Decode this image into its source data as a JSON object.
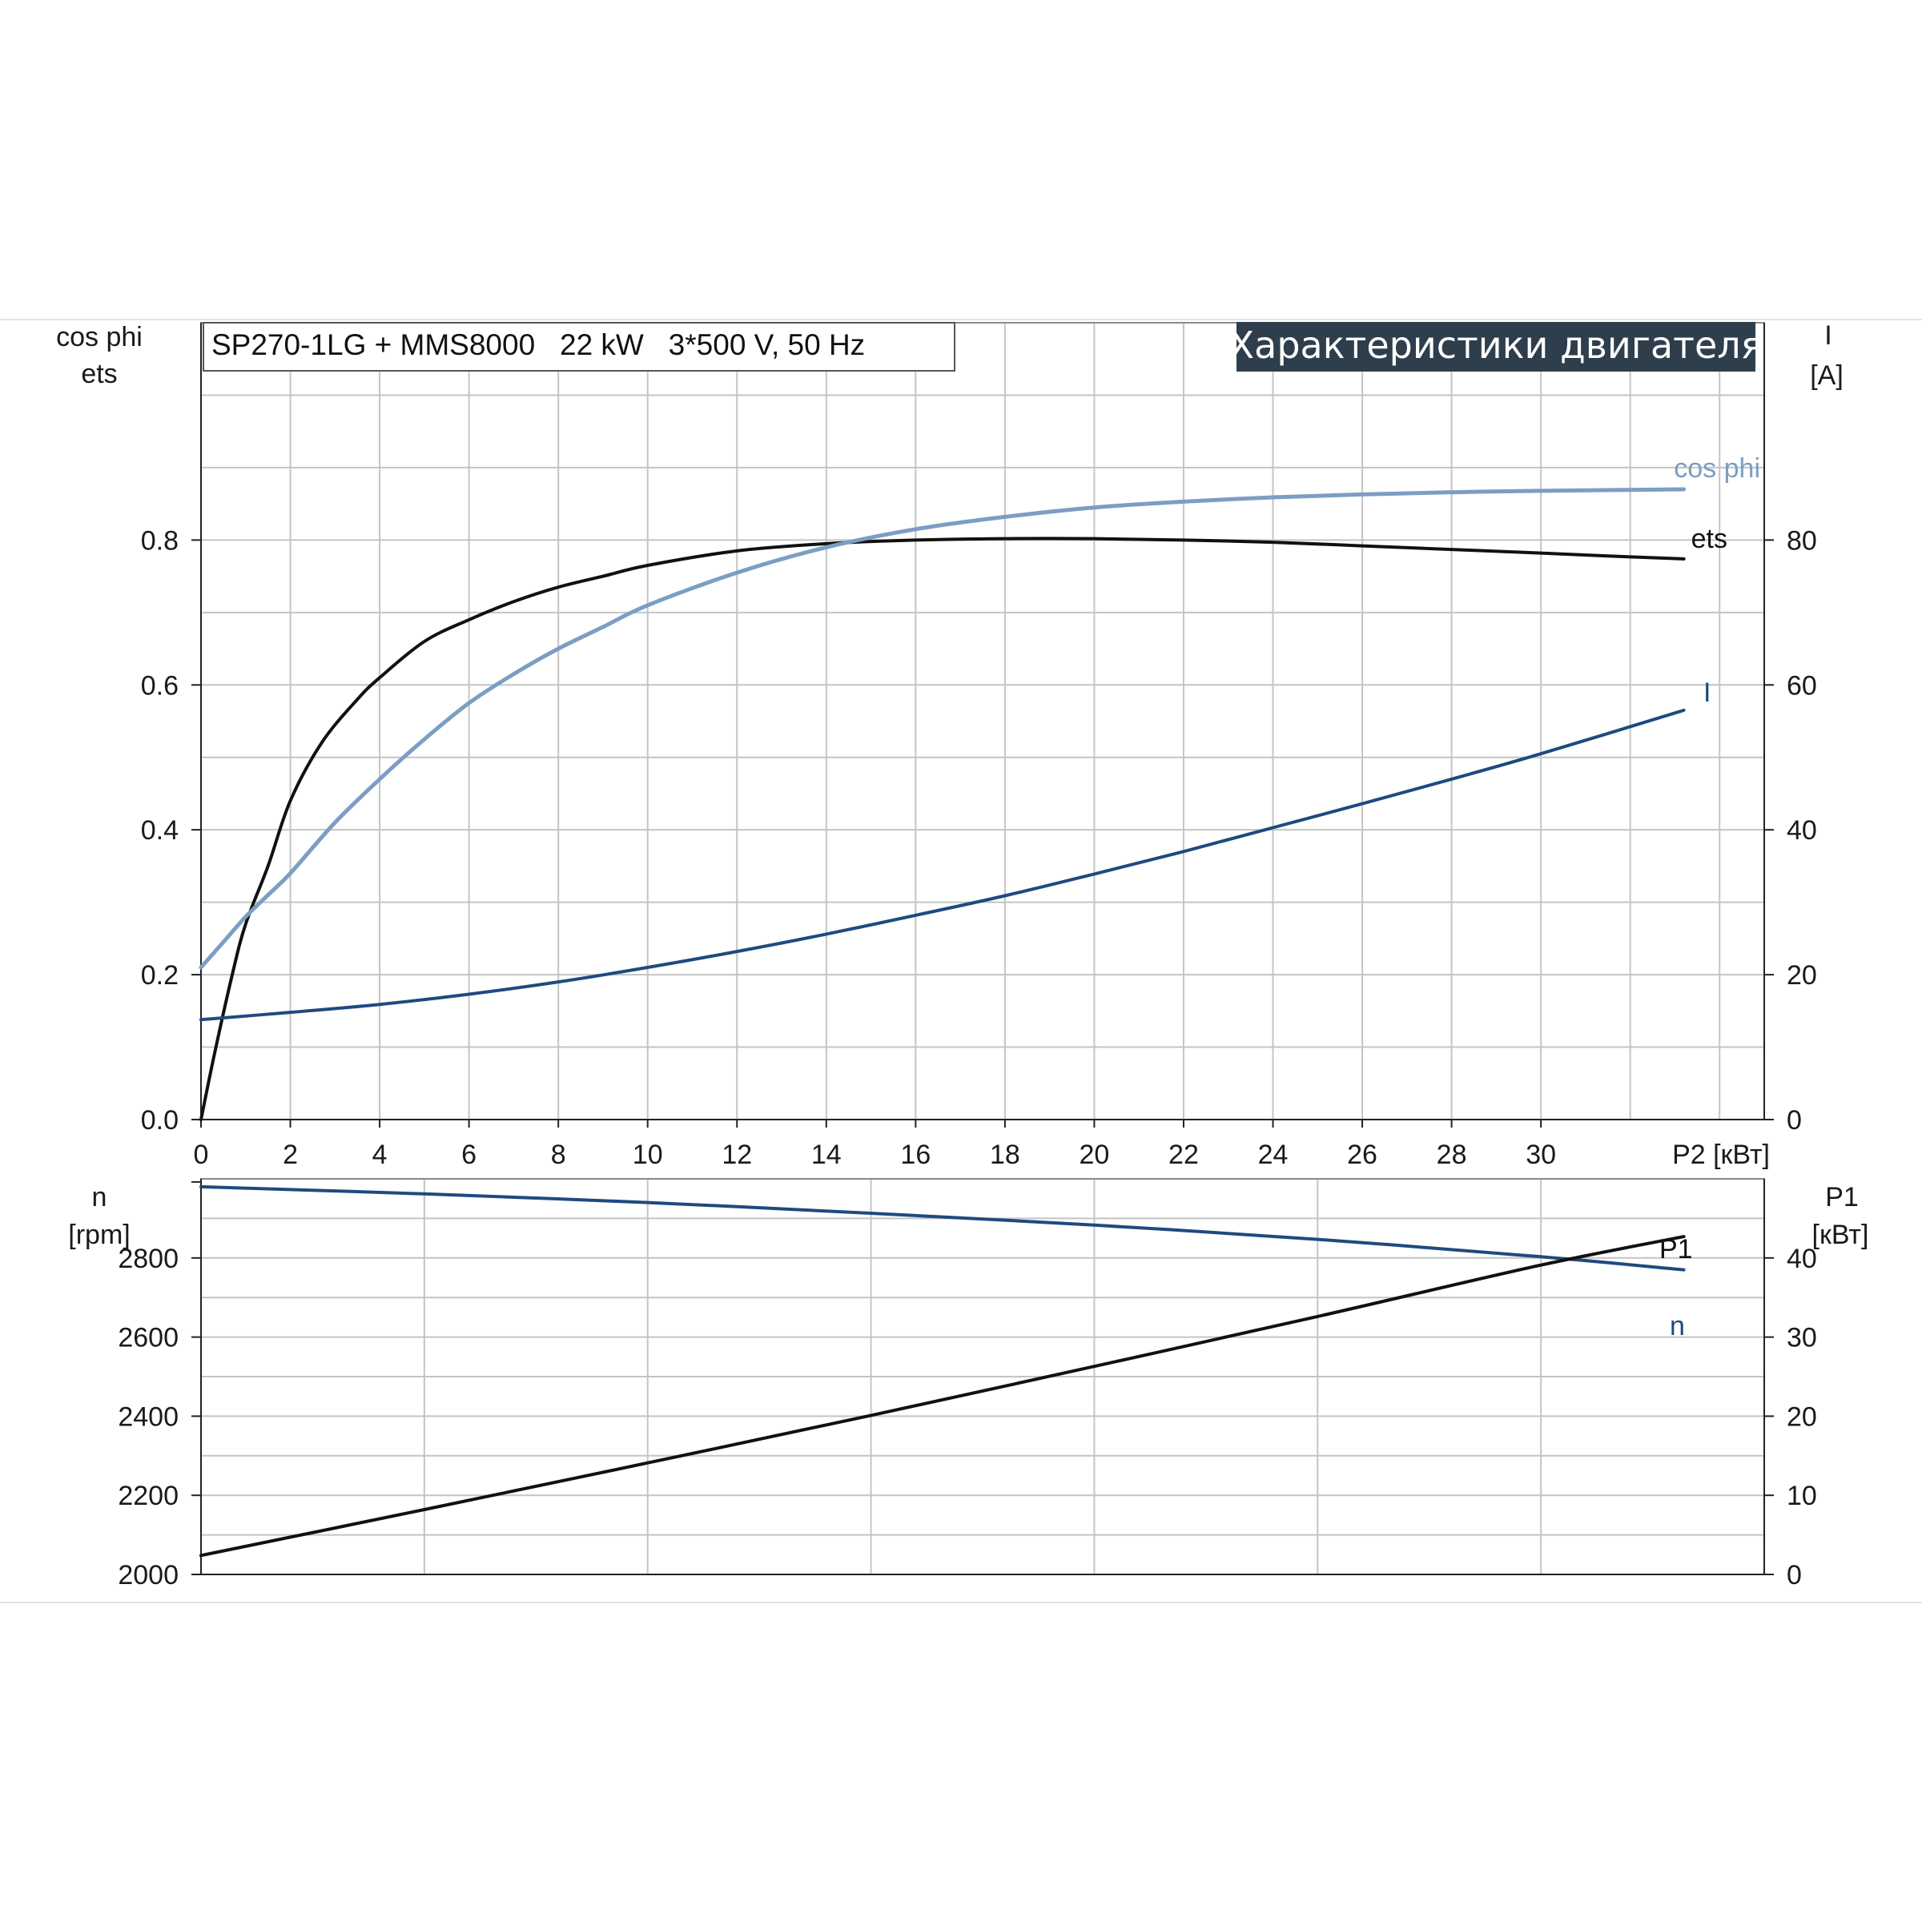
{
  "info_box": "SP270-1LG + MMS8000   22 kW   3*500 V, 50 Hz",
  "title": "Характеристики двигателя",
  "colors": {
    "grid": "#c4c4c4",
    "frame": "#8a8a8a",
    "axis": "#222222",
    "title_bg": "#2f3e4d",
    "ets": "#111111",
    "cosphi": "#7b9ec3",
    "current": "#1f4a80",
    "speed": "#1f4a80",
    "p1": "#111111"
  },
  "chart_data": [
    {
      "id": "top",
      "type": "line",
      "x_label": "P2 [кВт]",
      "xlim": [
        0,
        35
      ],
      "x_ticks": [
        "0",
        "2",
        "4",
        "6",
        "8",
        "10",
        "12",
        "14",
        "16",
        "18",
        "20",
        "22",
        "24",
        "26",
        "28",
        "30"
      ],
      "y_left_title": [
        "cos phi",
        "ets"
      ],
      "y_left_lim": [
        0,
        1.1
      ],
      "y_left_ticks": [
        "0.0",
        "0.2",
        "0.4",
        "0.6",
        "0.8"
      ],
      "y_right_title": [
        "I",
        "[A]"
      ],
      "y_right_lim": [
        0,
        110
      ],
      "y_right_ticks": [
        "0",
        "20",
        "40",
        "60",
        "80"
      ],
      "grid": true,
      "series": [
        {
          "name": "ets",
          "axis": "left",
          "x": [
            0,
            0.3,
            0.7,
            1,
            1.5,
            2,
            2.7,
            3.5,
            4,
            5,
            6,
            7,
            8,
            9,
            10,
            12,
            14,
            16,
            18,
            20,
            22,
            24,
            26,
            28,
            30,
            31.5,
            33.2
          ],
          "y": [
            0,
            0.09,
            0.2,
            0.27,
            0.35,
            0.44,
            0.52,
            0.58,
            0.61,
            0.66,
            0.69,
            0.715,
            0.735,
            0.75,
            0.765,
            0.785,
            0.795,
            0.8,
            0.802,
            0.802,
            0.8,
            0.797,
            0.792,
            0.787,
            0.782,
            0.778,
            0.774
          ]
        },
        {
          "name": "cos phi",
          "axis": "left",
          "x": [
            0,
            0.5,
            1,
            1.5,
            2,
            3,
            4,
            5,
            6,
            7,
            8,
            9,
            10,
            12,
            14,
            16,
            18,
            20,
            22,
            24,
            26,
            28,
            30,
            33.2
          ],
          "y": [
            0.21,
            0.245,
            0.28,
            0.31,
            0.34,
            0.41,
            0.47,
            0.525,
            0.575,
            0.615,
            0.65,
            0.68,
            0.71,
            0.755,
            0.79,
            0.815,
            0.832,
            0.845,
            0.853,
            0.859,
            0.863,
            0.866,
            0.868,
            0.87
          ]
        },
        {
          "name": "I",
          "axis": "right",
          "x": [
            0,
            2,
            4,
            6,
            8,
            10,
            12,
            14,
            16,
            18,
            20,
            22,
            24,
            26,
            28,
            30,
            33.2
          ],
          "y": [
            13.8,
            14.8,
            15.9,
            17.3,
            19,
            21,
            23.2,
            25.6,
            28.2,
            30.9,
            33.9,
            37,
            40.3,
            43.6,
            47,
            50.5,
            56.5
          ]
        }
      ]
    },
    {
      "id": "bottom",
      "type": "line",
      "xlim": [
        0,
        35
      ],
      "y_left_title": [
        "n",
        "[rpm]"
      ],
      "y_left_lim": [
        2000,
        3000
      ],
      "y_left_ticks": [
        "2000",
        "2200",
        "2400",
        "2600",
        "2800"
      ],
      "y_right_title": [
        "P1",
        "[кВт]"
      ],
      "y_right_lim": [
        0,
        50
      ],
      "y_right_ticks": [
        "0",
        "10",
        "20",
        "30",
        "40"
      ],
      "grid": true,
      "series": [
        {
          "name": "n",
          "axis": "left",
          "x": [
            0,
            5,
            10,
            15,
            20,
            25,
            30,
            33.2
          ],
          "y": [
            2980,
            2962,
            2940,
            2913,
            2883,
            2847,
            2803,
            2770
          ]
        },
        {
          "name": "P1",
          "axis": "right",
          "x": [
            0,
            5,
            10,
            15,
            20,
            25,
            30,
            33.2
          ],
          "y": [
            2.4,
            8.2,
            14.1,
            20.1,
            26.3,
            32.6,
            39.1,
            42.7
          ]
        }
      ]
    }
  ]
}
